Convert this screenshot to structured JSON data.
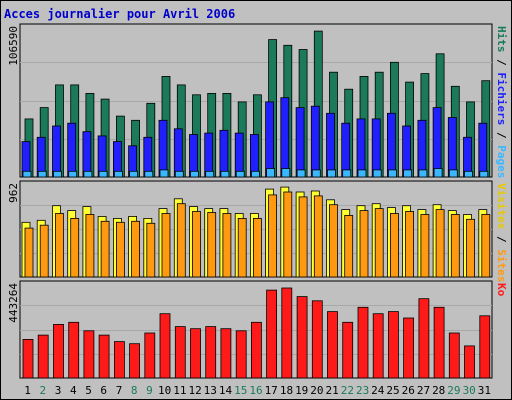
{
  "title": "Acces journalier pour Avril 2006",
  "colors": {
    "pages": "#3ab7ff",
    "fichiers": "#2020ff",
    "hits": "#1b7a5a",
    "visites": "#ffff33",
    "sites": "#ff9a10",
    "ko": "#ff1a1a",
    "weekend_day": "#1b7a5a",
    "day": "#000000"
  },
  "chart_data": [
    {
      "type": "bar",
      "panel": "pages-fichiers-hits",
      "right_label": [
        "Pages",
        "Fichiers",
        "Hits"
      ],
      "max_label": "106590",
      "ylim": [
        0,
        106590
      ],
      "categories": [
        "1",
        "2",
        "3",
        "4",
        "5",
        "6",
        "7",
        "8",
        "9",
        "10",
        "11",
        "12",
        "13",
        "14",
        "15",
        "16",
        "17",
        "18",
        "19",
        "20",
        "21",
        "22",
        "23",
        "24",
        "25",
        "26",
        "27",
        "28",
        "29",
        "30",
        "31"
      ],
      "series": [
        {
          "name": "Hits",
          "values": [
            41000,
            49000,
            65000,
            65000,
            59000,
            55000,
            43000,
            40000,
            52000,
            71000,
            65000,
            58000,
            59000,
            59000,
            53000,
            58000,
            97000,
            93000,
            90000,
            103000,
            74000,
            62000,
            71000,
            74000,
            81000,
            67000,
            73000,
            87000,
            64000,
            53000,
            68000
          ]
        },
        {
          "name": "Fichiers",
          "values": [
            25000,
            28000,
            36000,
            38000,
            32000,
            29000,
            25000,
            22000,
            28000,
            40000,
            34000,
            30000,
            31000,
            33000,
            31000,
            30000,
            53000,
            56000,
            49000,
            50000,
            45000,
            38000,
            41000,
            41000,
            45000,
            36000,
            40000,
            49000,
            42000,
            28000,
            38000
          ]
        },
        {
          "name": "Pages",
          "values": [
            4000,
            4000,
            4000,
            4000,
            4000,
            4000,
            4000,
            4000,
            4000,
            5000,
            4000,
            4000,
            4000,
            4000,
            4000,
            4000,
            6000,
            6000,
            5000,
            5000,
            5000,
            5000,
            5000,
            5000,
            5000,
            5000,
            5000,
            6000,
            5000,
            4000,
            4000
          ]
        }
      ]
    },
    {
      "type": "bar",
      "panel": "visites-sites",
      "right_label": [
        "Sites",
        "Visites"
      ],
      "max_label": "962",
      "ylim": [
        0,
        962
      ],
      "categories": [
        "1",
        "2",
        "3",
        "4",
        "5",
        "6",
        "7",
        "8",
        "9",
        "10",
        "11",
        "12",
        "13",
        "14",
        "15",
        "16",
        "17",
        "18",
        "19",
        "20",
        "21",
        "22",
        "23",
        "24",
        "25",
        "26",
        "27",
        "28",
        "29",
        "30",
        "31"
      ],
      "series": [
        {
          "name": "Visites",
          "values": [
            560,
            580,
            730,
            680,
            720,
            620,
            600,
            620,
            600,
            700,
            800,
            720,
            700,
            700,
            650,
            650,
            900,
            920,
            870,
            880,
            790,
            690,
            730,
            750,
            710,
            730,
            690,
            740,
            680,
            640,
            690
          ]
        },
        {
          "name": "Sites",
          "values": [
            500,
            530,
            650,
            600,
            640,
            570,
            560,
            570,
            550,
            650,
            750,
            670,
            660,
            650,
            600,
            600,
            840,
            870,
            820,
            830,
            740,
            630,
            680,
            700,
            650,
            670,
            640,
            690,
            640,
            590,
            640
          ]
        }
      ]
    },
    {
      "type": "bar",
      "panel": "ko",
      "right_label": [
        "Ko"
      ],
      "max_label": "443264",
      "ylim": [
        0,
        443264
      ],
      "categories": [
        "1",
        "2",
        "3",
        "4",
        "5",
        "6",
        "7",
        "8",
        "9",
        "10",
        "11",
        "12",
        "13",
        "14",
        "15",
        "16",
        "17",
        "18",
        "19",
        "20",
        "21",
        "22",
        "23",
        "24",
        "25",
        "26",
        "27",
        "28",
        "29",
        "30",
        "31"
      ],
      "series": [
        {
          "name": "Ko",
          "values": [
            180000,
            200000,
            250000,
            260000,
            220000,
            200000,
            170000,
            160000,
            210000,
            300000,
            240000,
            230000,
            240000,
            230000,
            220000,
            260000,
            410000,
            420000,
            380000,
            360000,
            310000,
            260000,
            330000,
            300000,
            310000,
            280000,
            370000,
            330000,
            210000,
            150000,
            290000
          ]
        }
      ]
    }
  ],
  "day_colors": [
    "day",
    "weekend_day",
    "day",
    "day",
    "day",
    "day",
    "day",
    "weekend_day",
    "weekend_day",
    "day",
    "day",
    "day",
    "day",
    "day",
    "weekend_day",
    "weekend_day",
    "day",
    "day",
    "day",
    "day",
    "day",
    "weekend_day",
    "weekend_day",
    "day",
    "day",
    "day",
    "day",
    "day",
    "weekend_day",
    "weekend_day",
    "day"
  ]
}
